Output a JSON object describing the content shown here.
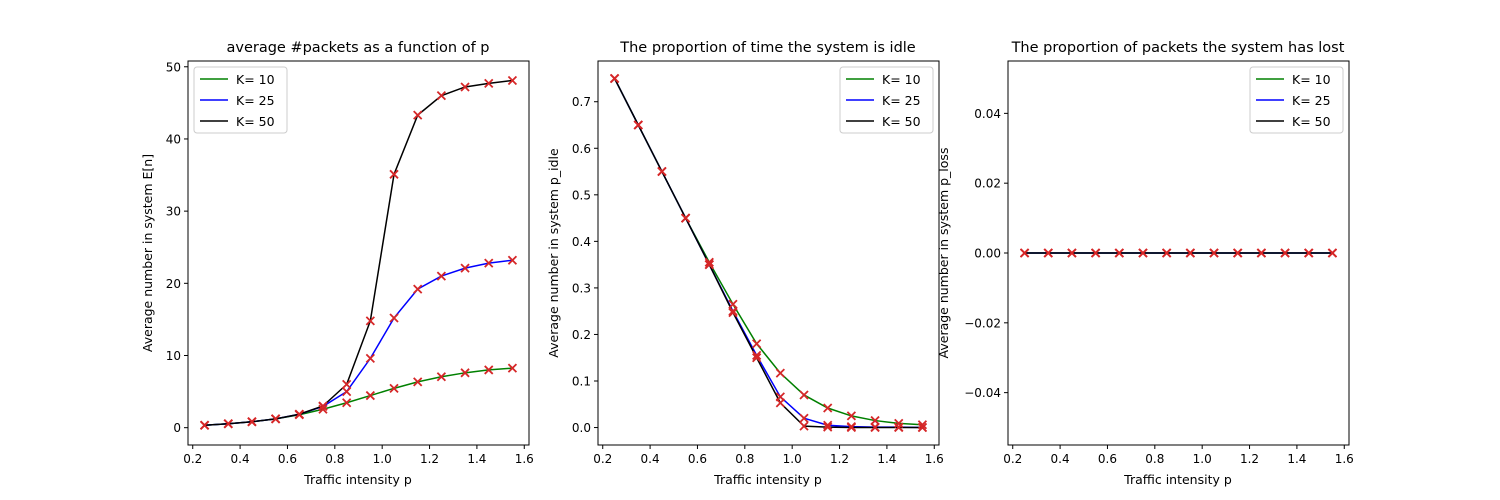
{
  "chart_data": [
    {
      "type": "line",
      "title": "average #packets as a function of p",
      "xlabel": "Traffic intensity p",
      "ylabel": "Average number in system E[n]",
      "xlim": [
        0.18,
        1.62
      ],
      "ylim": [
        -2.4,
        50.8
      ],
      "xticks": [
        0.2,
        0.4,
        0.6,
        0.8,
        1.0,
        1.2,
        1.4,
        1.6
      ],
      "xtick_labels": [
        "0.2",
        "0.4",
        "0.6",
        "0.8",
        "1.0",
        "1.2",
        "1.4",
        "1.6"
      ],
      "yticks": [
        0,
        10,
        20,
        30,
        40,
        50
      ],
      "ytick_labels": [
        "0",
        "10",
        "20",
        "30",
        "40",
        "50"
      ],
      "legend_position": "top-left",
      "x": [
        0.25,
        0.35,
        0.45,
        0.55,
        0.65,
        0.75,
        0.85,
        0.95,
        1.05,
        1.15,
        1.25,
        1.35,
        1.45,
        1.55
      ],
      "series": [
        {
          "name": "K= 10",
          "color": "#008000",
          "values": [
            0.33,
            0.54,
            0.82,
            1.22,
            1.79,
            2.55,
            3.45,
            4.45,
            5.45,
            6.35,
            7.05,
            7.6,
            8.0,
            8.25
          ]
        },
        {
          "name": "K= 25",
          "color": "#0000ff",
          "values": [
            0.33,
            0.54,
            0.82,
            1.22,
            1.86,
            2.95,
            5.0,
            9.6,
            15.2,
            19.2,
            21.0,
            22.1,
            22.8,
            23.2
          ]
        },
        {
          "name": "K= 50",
          "color": "#000000",
          "values": [
            0.33,
            0.54,
            0.82,
            1.22,
            1.86,
            3.0,
            6.0,
            14.8,
            35.1,
            43.3,
            46.0,
            47.2,
            47.7,
            48.1
          ]
        }
      ],
      "markers": {
        "symbol": "x",
        "color": "#d62728"
      }
    },
    {
      "type": "line",
      "title": "The proportion of time the system is idle",
      "xlabel": "Traffic intensity p",
      "ylabel": "Average number in system p_idle",
      "xlim": [
        0.18,
        1.62
      ],
      "ylim": [
        -0.0375,
        0.7875
      ],
      "xticks": [
        0.2,
        0.4,
        0.6,
        0.8,
        1.0,
        1.2,
        1.4,
        1.6
      ],
      "xtick_labels": [
        "0.2",
        "0.4",
        "0.6",
        "0.8",
        "1.0",
        "1.2",
        "1.4",
        "1.6"
      ],
      "yticks": [
        0.0,
        0.1,
        0.2,
        0.3,
        0.4,
        0.5,
        0.6,
        0.7
      ],
      "ytick_labels": [
        "0.0",
        "0.1",
        "0.2",
        "0.3",
        "0.4",
        "0.5",
        "0.6",
        "0.7"
      ],
      "legend_position": "top-right",
      "x": [
        0.25,
        0.35,
        0.45,
        0.55,
        0.65,
        0.75,
        0.85,
        0.95,
        1.05,
        1.15,
        1.25,
        1.35,
        1.45,
        1.55
      ],
      "series": [
        {
          "name": "K= 10",
          "color": "#008000",
          "values": [
            0.75,
            0.65,
            0.55,
            0.45,
            0.355,
            0.265,
            0.18,
            0.117,
            0.07,
            0.042,
            0.025,
            0.015,
            0.009,
            0.006
          ]
        },
        {
          "name": "K= 25",
          "color": "#0000ff",
          "values": [
            0.75,
            0.65,
            0.55,
            0.45,
            0.35,
            0.25,
            0.155,
            0.066,
            0.02,
            0.005,
            0.002,
            0.001,
            0.001,
            0.0
          ]
        },
        {
          "name": "K= 50",
          "color": "#000000",
          "values": [
            0.75,
            0.65,
            0.55,
            0.45,
            0.35,
            0.247,
            0.15,
            0.053,
            0.003,
            0.001,
            0.0,
            0.0,
            0.0,
            0.0
          ]
        }
      ],
      "markers": {
        "symbol": "x",
        "color": "#d62728"
      }
    },
    {
      "type": "line",
      "title": "The proportion of packets the system has lost",
      "xlabel": "Traffic intensity p",
      "ylabel": "Average number in system p_loss",
      "xlim": [
        0.18,
        1.62
      ],
      "ylim": [
        -0.055,
        0.055
      ],
      "xticks": [
        0.2,
        0.4,
        0.6,
        0.8,
        1.0,
        1.2,
        1.4,
        1.6
      ],
      "xtick_labels": [
        "0.2",
        "0.4",
        "0.6",
        "0.8",
        "1.0",
        "1.2",
        "1.4",
        "1.6"
      ],
      "yticks": [
        -0.04,
        -0.02,
        0.0,
        0.02,
        0.04
      ],
      "ytick_labels": [
        "−0.04",
        "−0.02",
        "0.00",
        "0.02",
        "0.04"
      ],
      "legend_position": "top-right",
      "x": [
        0.25,
        0.35,
        0.45,
        0.55,
        0.65,
        0.75,
        0.85,
        0.95,
        1.05,
        1.15,
        1.25,
        1.35,
        1.45,
        1.55
      ],
      "series": [
        {
          "name": "K= 10",
          "color": "#008000",
          "values": [
            0,
            0,
            0,
            0,
            0,
            0,
            0,
            0,
            0,
            0,
            0,
            0,
            0,
            0
          ]
        },
        {
          "name": "K= 25",
          "color": "#0000ff",
          "values": [
            0,
            0,
            0,
            0,
            0,
            0,
            0,
            0,
            0,
            0,
            0,
            0,
            0,
            0
          ]
        },
        {
          "name": "K= 50",
          "color": "#000000",
          "values": [
            0,
            0,
            0,
            0,
            0,
            0,
            0,
            0,
            0,
            0,
            0,
            0,
            0,
            0
          ]
        }
      ],
      "markers": {
        "symbol": "x",
        "color": "#d62728"
      }
    }
  ]
}
